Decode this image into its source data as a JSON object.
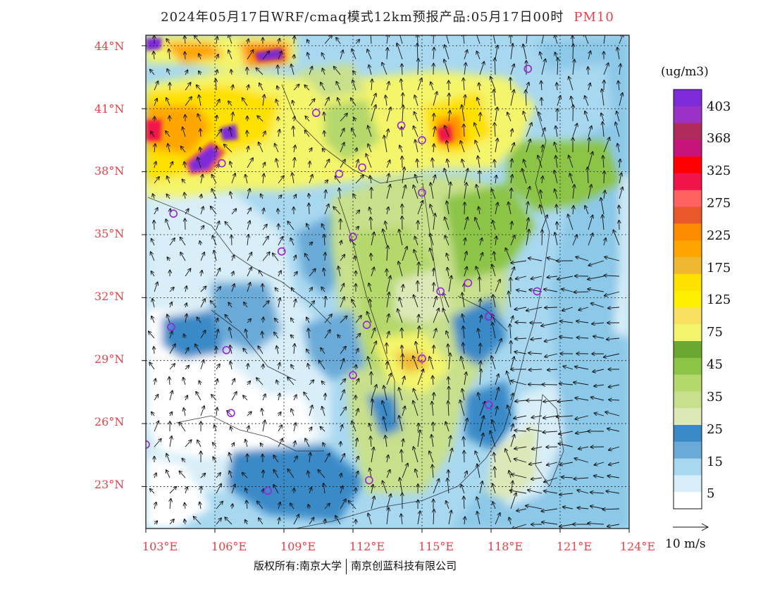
{
  "title": {
    "main": "2024年05月17日WRF/cmaq模式12km预报产品:05月17日00时",
    "variable": "PM10"
  },
  "axes": {
    "lat_labels": [
      "44°N",
      "41°N",
      "38°N",
      "35°N",
      "32°N",
      "29°N",
      "26°N",
      "23°N"
    ],
    "lon_labels": [
      "103°E",
      "106°E",
      "109°E",
      "112°E",
      "115°E",
      "118°E",
      "121°E",
      "124°E"
    ],
    "lat_values": [
      44,
      41,
      38,
      35,
      32,
      29,
      26,
      23
    ],
    "lon_values": [
      103,
      106,
      109,
      112,
      115,
      118,
      121,
      124
    ],
    "lat_range": [
      21,
      44.5
    ],
    "lon_range": [
      103,
      124
    ]
  },
  "legend": {
    "unit": "(ug/m3)",
    "labels": [
      "403",
      "368",
      "325",
      "275",
      "225",
      "175",
      "125",
      "75",
      "45",
      "35",
      "25",
      "15",
      "5"
    ],
    "colors": [
      "#7d2ad8",
      "#9b32c8",
      "#b02a5c",
      "#c8147a",
      "#ff0000",
      "#f0144a",
      "#ff6060",
      "#e8582a",
      "#ff8c00",
      "#ffa500",
      "#f0b830",
      "#ffe100",
      "#ffef00",
      "#f8e060",
      "#f4f56a",
      "#6aa832",
      "#8cc446",
      "#b4d86c",
      "#c8e08c",
      "#dde8b8",
      "#3a8ac8",
      "#6aaad8",
      "#a8d8f0",
      "#d8eef8",
      "#ffffff"
    ]
  },
  "wind_reference": {
    "label": "10 m/s"
  },
  "cities": [
    {
      "lon": 119.6,
      "lat": 42.9
    },
    {
      "lon": 110.4,
      "lat": 40.8
    },
    {
      "lon": 114.1,
      "lat": 40.2
    },
    {
      "lon": 115.0,
      "lat": 39.5
    },
    {
      "lon": 106.3,
      "lat": 38.4
    },
    {
      "lon": 111.4,
      "lat": 37.9
    },
    {
      "lon": 112.4,
      "lat": 38.2
    },
    {
      "lon": 115.0,
      "lat": 37.0
    },
    {
      "lon": 104.2,
      "lat": 36.0
    },
    {
      "lon": 112.0,
      "lat": 34.9
    },
    {
      "lon": 108.9,
      "lat": 34.2
    },
    {
      "lon": 115.8,
      "lat": 32.3
    },
    {
      "lon": 117.0,
      "lat": 32.7
    },
    {
      "lon": 120.0,
      "lat": 32.3
    },
    {
      "lon": 117.9,
      "lat": 31.1
    },
    {
      "lon": 104.1,
      "lat": 30.6
    },
    {
      "lon": 112.6,
      "lat": 30.7
    },
    {
      "lon": 106.5,
      "lat": 29.5
    },
    {
      "lon": 115.0,
      "lat": 29.1
    },
    {
      "lon": 112.0,
      "lat": 28.3
    },
    {
      "lon": 106.7,
      "lat": 26.5
    },
    {
      "lon": 117.9,
      "lat": 26.9
    },
    {
      "lon": 103.0,
      "lat": 25.0
    },
    {
      "lon": 108.3,
      "lat": 22.8
    },
    {
      "lon": 112.7,
      "lat": 23.3
    }
  ],
  "copyright": {
    "part1": "版权所有:南京大学",
    "part2": "南京创蓝科技有限公司"
  }
}
